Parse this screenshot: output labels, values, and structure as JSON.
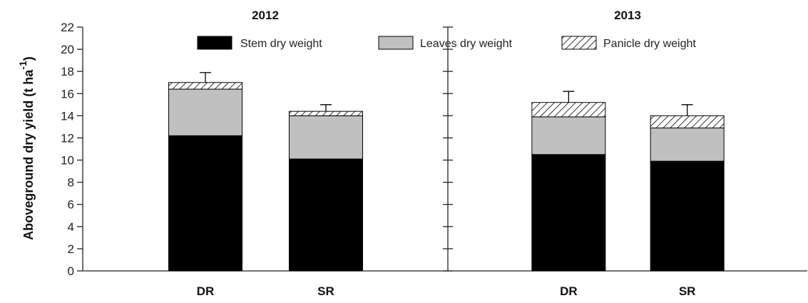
{
  "chart_data": {
    "type": "bar",
    "stacked": true,
    "ylabel": "Aboveground dry yield (t ha",
    "ylabel_superscript": "-1",
    "ylabel_close": ")",
    "ylim": [
      0,
      22
    ],
    "yticks": [
      "0",
      "2",
      "4",
      "6",
      "8",
      "10",
      "12",
      "14",
      "16",
      "18",
      "20",
      "22"
    ],
    "legend": {
      "placement": "top",
      "items": [
        {
          "label": "Stem dry weight",
          "color": "#000000",
          "pattern": "solid"
        },
        {
          "label": "Leaves dry weight",
          "color": "#c0c0c0",
          "pattern": "solid"
        },
        {
          "label": "Panicle dry weight",
          "color": "#ffffff",
          "pattern": "hatch"
        }
      ]
    },
    "panels": [
      {
        "title": "2012",
        "categories": [
          "DR",
          "SR"
        ],
        "series": [
          {
            "name": "Stem dry weight",
            "values": [
              12.2,
              10.1
            ]
          },
          {
            "name": "Leaves dry weight",
            "values": [
              4.2,
              3.9
            ]
          },
          {
            "name": "Panicle dry weight",
            "values": [
              0.6,
              0.4
            ]
          }
        ],
        "error": [
          0.9,
          0.6
        ]
      },
      {
        "title": "2013",
        "categories": [
          "DR",
          "SR"
        ],
        "series": [
          {
            "name": "Stem dry weight",
            "values": [
              10.5,
              9.9
            ]
          },
          {
            "name": "Leaves dry weight",
            "values": [
              3.4,
              3.0
            ]
          },
          {
            "name": "Panicle dry weight",
            "values": [
              1.3,
              1.1
            ]
          }
        ],
        "error": [
          1.0,
          1.0
        ]
      }
    ]
  }
}
